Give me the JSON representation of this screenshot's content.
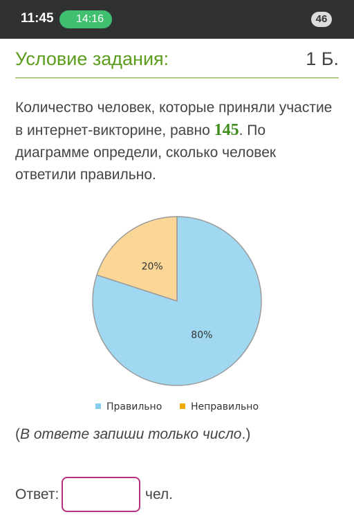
{
  "status_bar": {
    "time": "11:45",
    "call": "14:16",
    "battery": "46"
  },
  "header": {
    "title": "Условие задания:",
    "points": "1 Б."
  },
  "question": {
    "before": "Количество человек, которые приняли участие в интернет-викторине, равно ",
    "number": "145",
    "after": ". По диаграмме определи, сколько человек ответили правильно."
  },
  "chart_data": {
    "type": "pie",
    "categories": [
      "Правильно",
      "Неправильно"
    ],
    "values": [
      80,
      20
    ],
    "value_labels": [
      "80%",
      "20%"
    ],
    "colors": [
      "#a0d8f2",
      "#fad797"
    ],
    "legend_colors": [
      "#84cdee",
      "#f2a900"
    ],
    "start_angle": 0,
    "direction": "clockwise"
  },
  "note": {
    "open": "(",
    "text": "В ответе запиши только число",
    "close": ".)"
  },
  "answer": {
    "label": "Ответ:",
    "unit": "чел."
  }
}
